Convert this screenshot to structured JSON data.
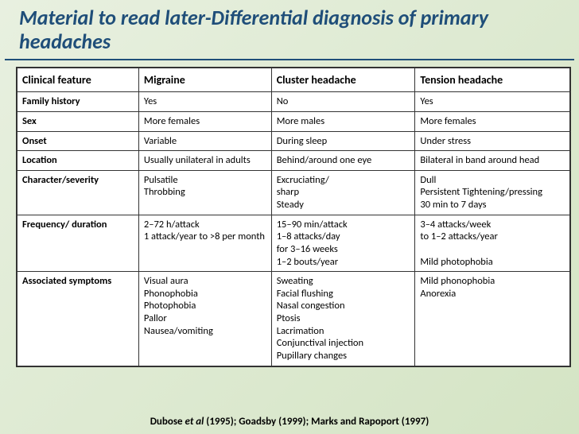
{
  "slide": {
    "title": "Material to read later-Differential diagnosis of primary headaches",
    "title_color": "#1f4e79",
    "background_gradient": [
      "#e8f0e0",
      "#d4e4c4"
    ]
  },
  "table": {
    "columns": [
      "Clinical feature",
      "Migraine",
      "Cluster headache",
      "Tension headache"
    ],
    "rows": [
      [
        "Family history",
        "Yes",
        "No",
        "Yes"
      ],
      [
        "Sex",
        "More females",
        "More males",
        "More females"
      ],
      [
        "Onset",
        "Variable",
        "During sleep",
        "Under stress"
      ],
      [
        "Location",
        "Usually unilateral in adults",
        "Behind/around one eye",
        "Bilateral in band around head"
      ],
      [
        "Character/severity",
        "Pulsatile\nThrobbing",
        "Excruciating/\nsharp\nSteady",
        "Dull\nPersistent  Tightening/pressing\n30 min to 7 days"
      ],
      [
        "Frequency/ duration",
        "2–72 h/attack\n1 attack/year to >8 per month",
        "15–90 min/attack\n1–8 attacks/day\nfor 3–16 weeks\n1–2 bouts/year",
        "3–4 attacks/week\nto 1–2 attacks/year\n\nMild photophobia"
      ],
      [
        "Associated symptoms",
        "Visual aura\nPhonophobia\nPhotophobia\nPallor\nNausea/vomiting",
        "Sweating\nFacial flushing\nNasal congestion\nPtosis\nLacrimation\nConjunctival injection\nPupillary changes",
        "Mild phonophobia\nAnorexia"
      ]
    ],
    "header_fontsize": 14,
    "cell_fontsize": 12.5,
    "border_color": "#333333",
    "background": "#ffffff"
  },
  "citation": {
    "prefix": "Dubose ",
    "italic": "et al",
    "suffix": " (1995); Goadsby (1999); Marks and Rapoport (1997)"
  }
}
